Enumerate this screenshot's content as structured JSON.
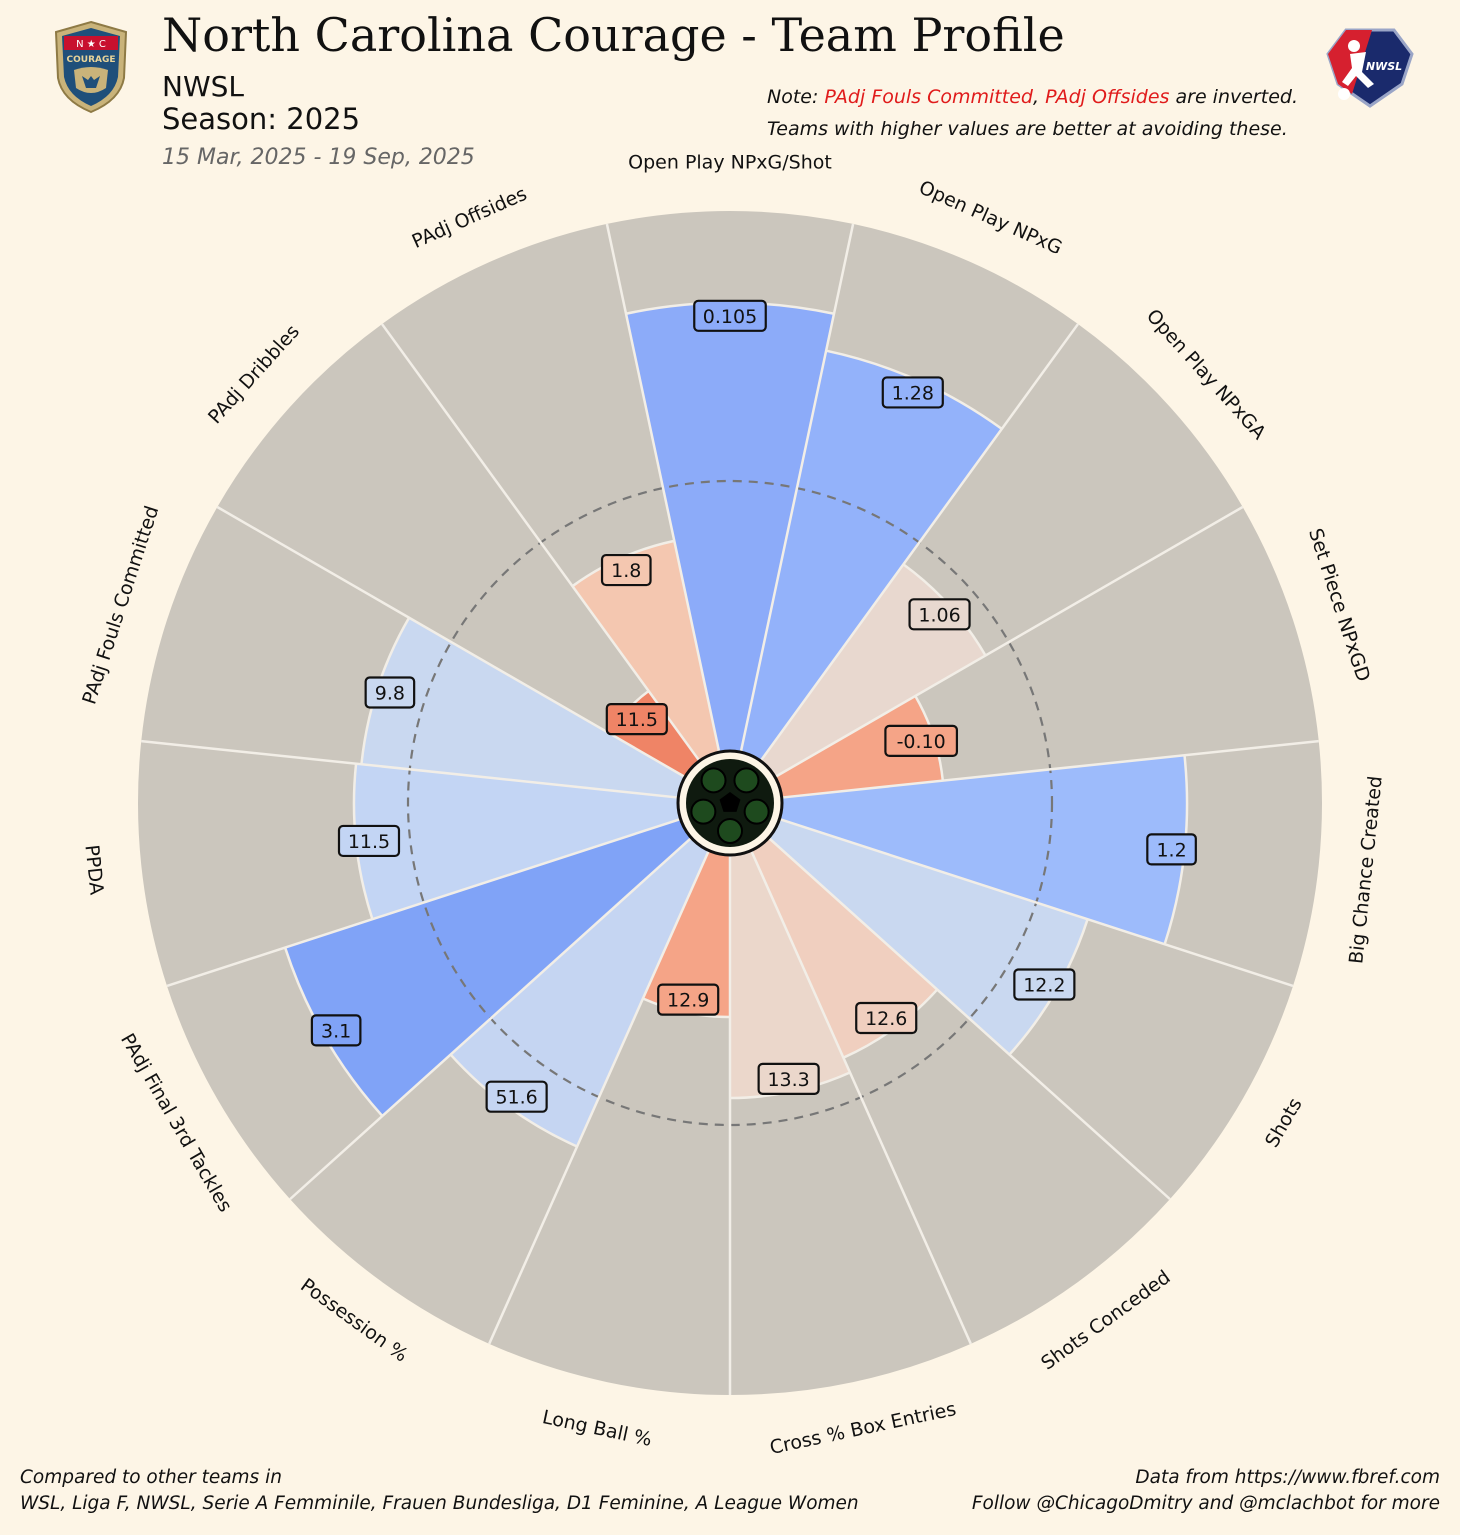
{
  "header": {
    "title": "North Carolina Courage - Team Profile",
    "league": "NWSL",
    "season": "Season: 2025",
    "date_range": "15 Mar, 2025 - 19 Sep, 2025"
  },
  "note": {
    "prefix": "Note: ",
    "item1": "PAdj Fouls Committed",
    "sep": ", ",
    "item2": "PAdj Offsides",
    "suffix": " are inverted.",
    "line2": "Teams with higher values are better at avoiding these."
  },
  "logos": {
    "team_letters": "N ★ C",
    "team_name": "COURAGE",
    "league_name": "NWSL"
  },
  "footer": {
    "left_line1": "Compared to other teams in",
    "left_line2": "WSL, Liga F, NWSL, Serie A Femminile, Frauen Bundesliga, D1 Feminine, A League Women",
    "right_line1": "Data from https://www.fbref.com",
    "right_line2": "Follow @ChicagoDmitry and @mclachbot for more"
  },
  "colors": {
    "background": "#fdf5e6",
    "slice_background": "#cbc6bd",
    "high": "#7ea2f8",
    "low": "#ef8466"
  },
  "chart_data": {
    "type": "radar-pizza",
    "percentile_range": [
      0,
      100
    ],
    "reference_ring_percentile": 50,
    "params": [
      {
        "name": "Open Play NPxG/Shot",
        "value": "0.105",
        "percentile": 83,
        "color": "#8cabf9"
      },
      {
        "name": "Open Play NPxG",
        "value": "1.28",
        "percentile": 76,
        "color": "#93b2fa"
      },
      {
        "name": "Open Play NPxGA",
        "value": "1.06",
        "percentile": 45,
        "color": "#e8d8cf"
      },
      {
        "name": "Set Piece NPxGD",
        "value": "-0.10",
        "percentile": 30,
        "color": "#f5a487"
      },
      {
        "name": "Big Chance Created",
        "value": "1.2",
        "percentile": 75,
        "color": "#9dbbfb"
      },
      {
        "name": "Shots",
        "value": "12.2",
        "percentile": 60,
        "color": "#c9d8f0"
      },
      {
        "name": "Shots Conceded",
        "value": "12.6",
        "percentile": 42,
        "color": "#f0cfbf"
      },
      {
        "name": "Cross % Box Entries",
        "value": "13.3",
        "percentile": 45,
        "color": "#ebd7cb"
      },
      {
        "name": "Long Ball %",
        "value": "12.9",
        "percentile": 30,
        "color": "#f5a487"
      },
      {
        "name": "Possession %",
        "value": "51.6",
        "percentile": 60,
        "color": "#c5d5f2"
      },
      {
        "name": "PAdj Final 3rd Tackles",
        "value": "3.1",
        "percentile": 77,
        "color": "#80a3f7"
      },
      {
        "name": "PPDA",
        "value": "11.5",
        "percentile": 60,
        "color": "#c3d5f4"
      },
      {
        "name": "PAdj Fouls Committed",
        "value": "9.8",
        "percentile": 59,
        "color": "#c9d8f0"
      },
      {
        "name": "PAdj Dribbles",
        "value": "11.5",
        "percentile": 16,
        "color": "#ef8466"
      },
      {
        "name": "PAdj Offsides",
        "value": "1.8",
        "percentile": 40,
        "color": "#f4c7b0"
      }
    ]
  }
}
